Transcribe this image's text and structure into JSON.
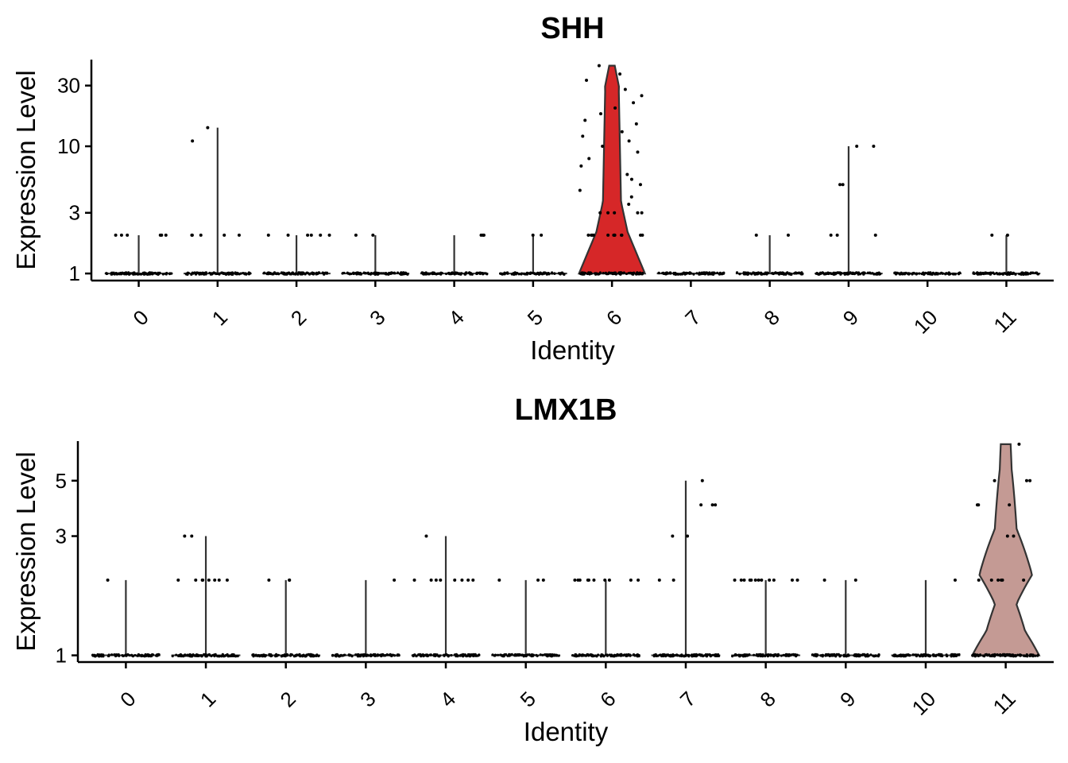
{
  "chart_data": [
    {
      "type": "violin",
      "title": "SHH",
      "xlabel": "Identity",
      "ylabel": "Expression Level",
      "y_scale": "log",
      "ylim": [
        0.88,
        48
      ],
      "y_ticks": [
        1,
        3,
        10,
        30
      ],
      "categories": [
        "0",
        "1",
        "2",
        "3",
        "4",
        "5",
        "6",
        "7",
        "8",
        "9",
        "10",
        "11"
      ],
      "max_values": [
        2,
        14,
        2,
        2,
        2,
        2,
        43,
        1,
        2,
        10,
        1,
        2
      ],
      "outlier_points": [
        {
          "cluster": "0",
          "values": [
            2,
            2,
            2,
            2,
            2,
            2
          ]
        },
        {
          "cluster": "1",
          "values": [
            14,
            11,
            2,
            2,
            2,
            2,
            2
          ]
        },
        {
          "cluster": "2",
          "values": [
            2,
            2,
            2,
            2,
            2,
            2
          ]
        },
        {
          "cluster": "3",
          "values": [
            2,
            2
          ]
        },
        {
          "cluster": "4",
          "values": [
            2,
            2,
            2
          ]
        },
        {
          "cluster": "5",
          "values": [
            2,
            2
          ]
        },
        {
          "cluster": "6",
          "values": [
            43,
            37,
            33,
            28,
            25,
            22,
            20,
            18,
            16,
            15,
            13,
            12,
            11,
            10,
            9,
            8,
            7,
            6,
            5.5,
            5,
            4.5,
            4,
            3.5,
            3,
            3,
            3,
            3,
            3,
            2,
            2,
            2,
            2,
            2,
            2,
            2,
            2,
            2,
            2,
            2,
            2
          ]
        },
        {
          "cluster": "8",
          "values": [
            2,
            2
          ]
        },
        {
          "cluster": "9",
          "values": [
            10,
            10,
            5,
            5,
            2,
            2,
            2
          ]
        },
        {
          "cluster": "11",
          "values": [
            2,
            2
          ]
        }
      ],
      "highlight": {
        "cluster": "6",
        "color": "#d62728"
      }
    },
    {
      "type": "violin",
      "title": "LMX1B",
      "xlabel": "Identity",
      "ylabel": "Expression Level",
      "y_scale": "log",
      "ylim": [
        0.94,
        7.2
      ],
      "y_ticks": [
        1,
        3,
        5
      ],
      "categories": [
        "0",
        "1",
        "2",
        "3",
        "4",
        "5",
        "6",
        "7",
        "8",
        "9",
        "10",
        "11"
      ],
      "max_values": [
        2,
        3,
        2,
        2,
        3,
        2,
        2,
        5,
        2,
        2,
        2,
        7
      ],
      "outlier_points": [
        {
          "cluster": "0",
          "values": [
            2
          ]
        },
        {
          "cluster": "1",
          "values": [
            3,
            3,
            2,
            2,
            2,
            2,
            2,
            2,
            2,
            2
          ]
        },
        {
          "cluster": "2",
          "values": [
            2,
            2,
            2
          ]
        },
        {
          "cluster": "3",
          "values": [
            2
          ]
        },
        {
          "cluster": "4",
          "values": [
            3,
            2,
            2,
            2,
            2,
            2,
            2,
            2,
            2
          ]
        },
        {
          "cluster": "5",
          "values": [
            2,
            2,
            2
          ]
        },
        {
          "cluster": "6",
          "values": [
            2,
            2,
            2,
            2,
            2,
            2,
            2,
            2,
            2,
            2
          ]
        },
        {
          "cluster": "7",
          "values": [
            5,
            4,
            4,
            4,
            3,
            3,
            2,
            2
          ]
        },
        {
          "cluster": "8",
          "values": [
            2,
            2,
            2,
            2,
            2,
            2,
            2,
            2,
            2,
            2,
            2,
            2
          ]
        },
        {
          "cluster": "9",
          "values": [
            2,
            2
          ]
        },
        {
          "cluster": "10",
          "values": [
            2
          ]
        },
        {
          "cluster": "11",
          "values": [
            7,
            5,
            5,
            5,
            4,
            4,
            4,
            3,
            3,
            2,
            2,
            2,
            2,
            2,
            2
          ]
        }
      ],
      "highlight": {
        "cluster": "11",
        "color": "#c49a94"
      }
    }
  ]
}
